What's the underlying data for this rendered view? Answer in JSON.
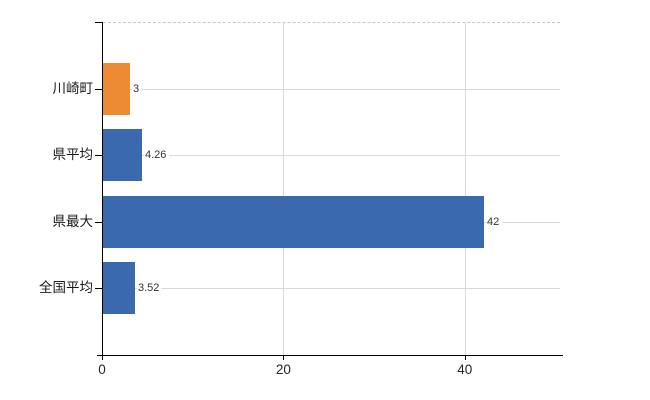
{
  "chart_data": {
    "type": "bar",
    "orientation": "horizontal",
    "title": "",
    "xlabel": "",
    "ylabel": "",
    "categories": [
      "川崎町",
      "県平均",
      "県最大",
      "全国平均"
    ],
    "values": [
      3,
      4.26,
      42,
      3.52
    ],
    "value_labels": [
      "3",
      "4.26",
      "42",
      "3.52"
    ],
    "bar_colors": [
      "#ed8b35",
      "#3a69ae",
      "#3a69ae",
      "#3a69ae"
    ],
    "x_ticks": [
      0,
      20,
      40
    ],
    "x_tick_labels": [
      "0",
      "20",
      "40"
    ],
    "xlim": [
      0,
      50.5
    ],
    "legend": "none",
    "grid": "light vertical gridlines at x ticks; light horizontal leader line from each value label to right edge; dashed light top border",
    "colors": {
      "background": "#ffffff",
      "axis": "#000000",
      "gridline": "#d9d9d9",
      "top_border": "#c9c9c9",
      "value_label_text": "#333333",
      "category_label_text": "#1a1a1a",
      "x_tick_label_text": "#262626"
    }
  }
}
